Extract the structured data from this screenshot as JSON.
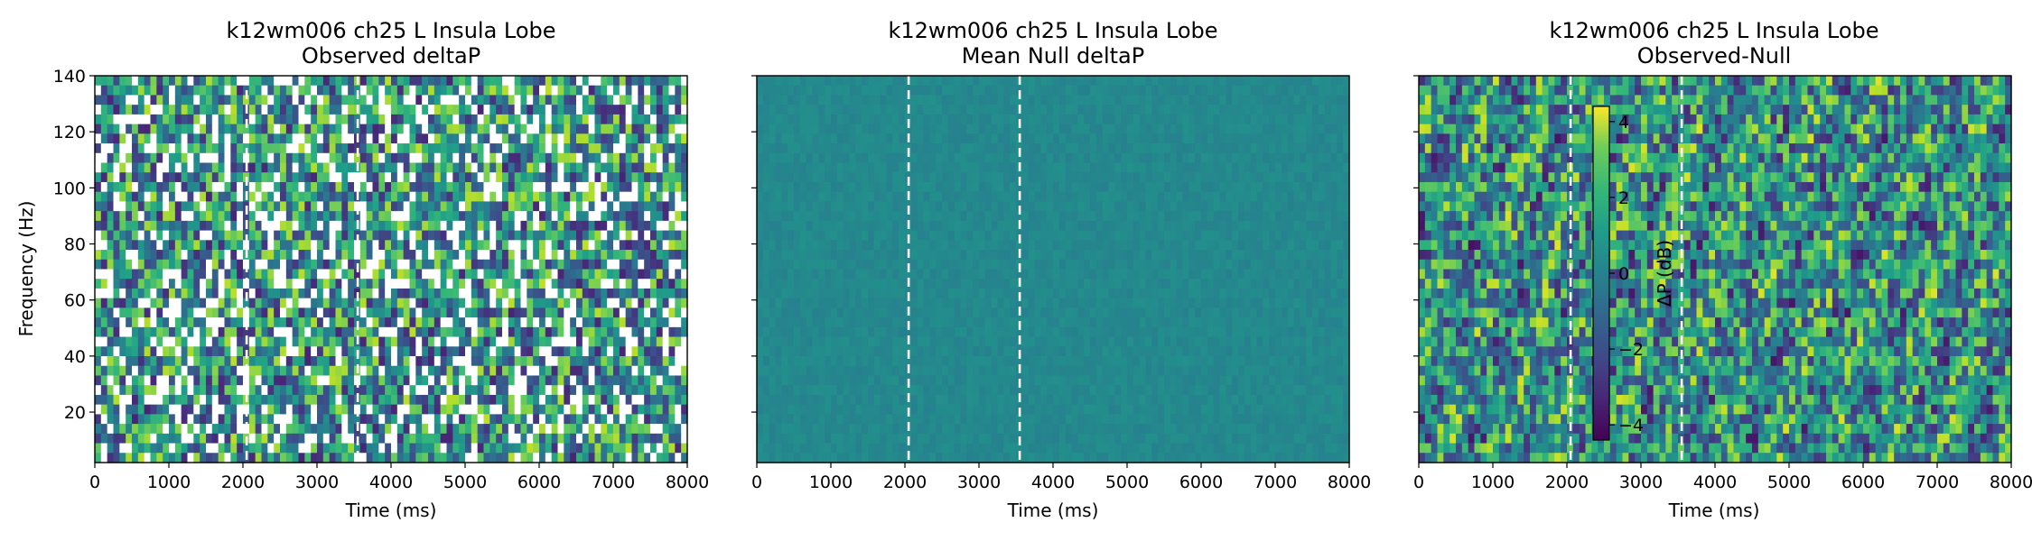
{
  "chart_data": [
    {
      "type": "heatmap",
      "title": "k12wm006 ch25 L Insula Lobe",
      "subtitle": "Observed deltaP",
      "xlabel": "Time (ms)",
      "ylabel": "Frequency (Hz)",
      "xlim": [
        0,
        8000
      ],
      "ylim": [
        2,
        140
      ],
      "xticks": [
        "0",
        "1000",
        "2000",
        "3000",
        "4000",
        "5000",
        "6000",
        "7000",
        "8000"
      ],
      "yticks": [
        "20",
        "40",
        "60",
        "80",
        "100",
        "120",
        "140"
      ],
      "event_lines_ms": [
        2050,
        3550
      ],
      "colormap": "viridis",
      "note_masked_white": true
    },
    {
      "type": "heatmap",
      "title": "k12wm006 ch25 L Insula Lobe",
      "subtitle": "Mean Null deltaP",
      "xlabel": "Time (ms)",
      "ylabel": "",
      "xlim": [
        0,
        8000
      ],
      "ylim": [
        2,
        140
      ],
      "xticks": [
        "0",
        "1000",
        "2000",
        "3000",
        "4000",
        "5000",
        "6000",
        "7000",
        "8000"
      ],
      "yticks": [],
      "event_lines_ms": [
        2050,
        3550
      ],
      "colormap": "viridis"
    },
    {
      "type": "heatmap",
      "title": "k12wm006 ch25 L Insula Lobe",
      "subtitle": "Observed-Null",
      "xlabel": "Time (ms)",
      "ylabel": "",
      "xlim": [
        0,
        8000
      ],
      "ylim": [
        2,
        140
      ],
      "xticks": [
        "0",
        "1000",
        "2000",
        "3000",
        "4000",
        "5000",
        "6000",
        "7000",
        "8000"
      ],
      "yticks": [],
      "event_lines_ms": [
        2050,
        3550
      ],
      "colormap": "viridis",
      "colorbar": {
        "label": "ΔP (dB)",
        "ticks": [
          "4",
          "2",
          "0",
          "−2",
          "−4"
        ],
        "range": [
          -4.4,
          4.4
        ]
      }
    }
  ]
}
